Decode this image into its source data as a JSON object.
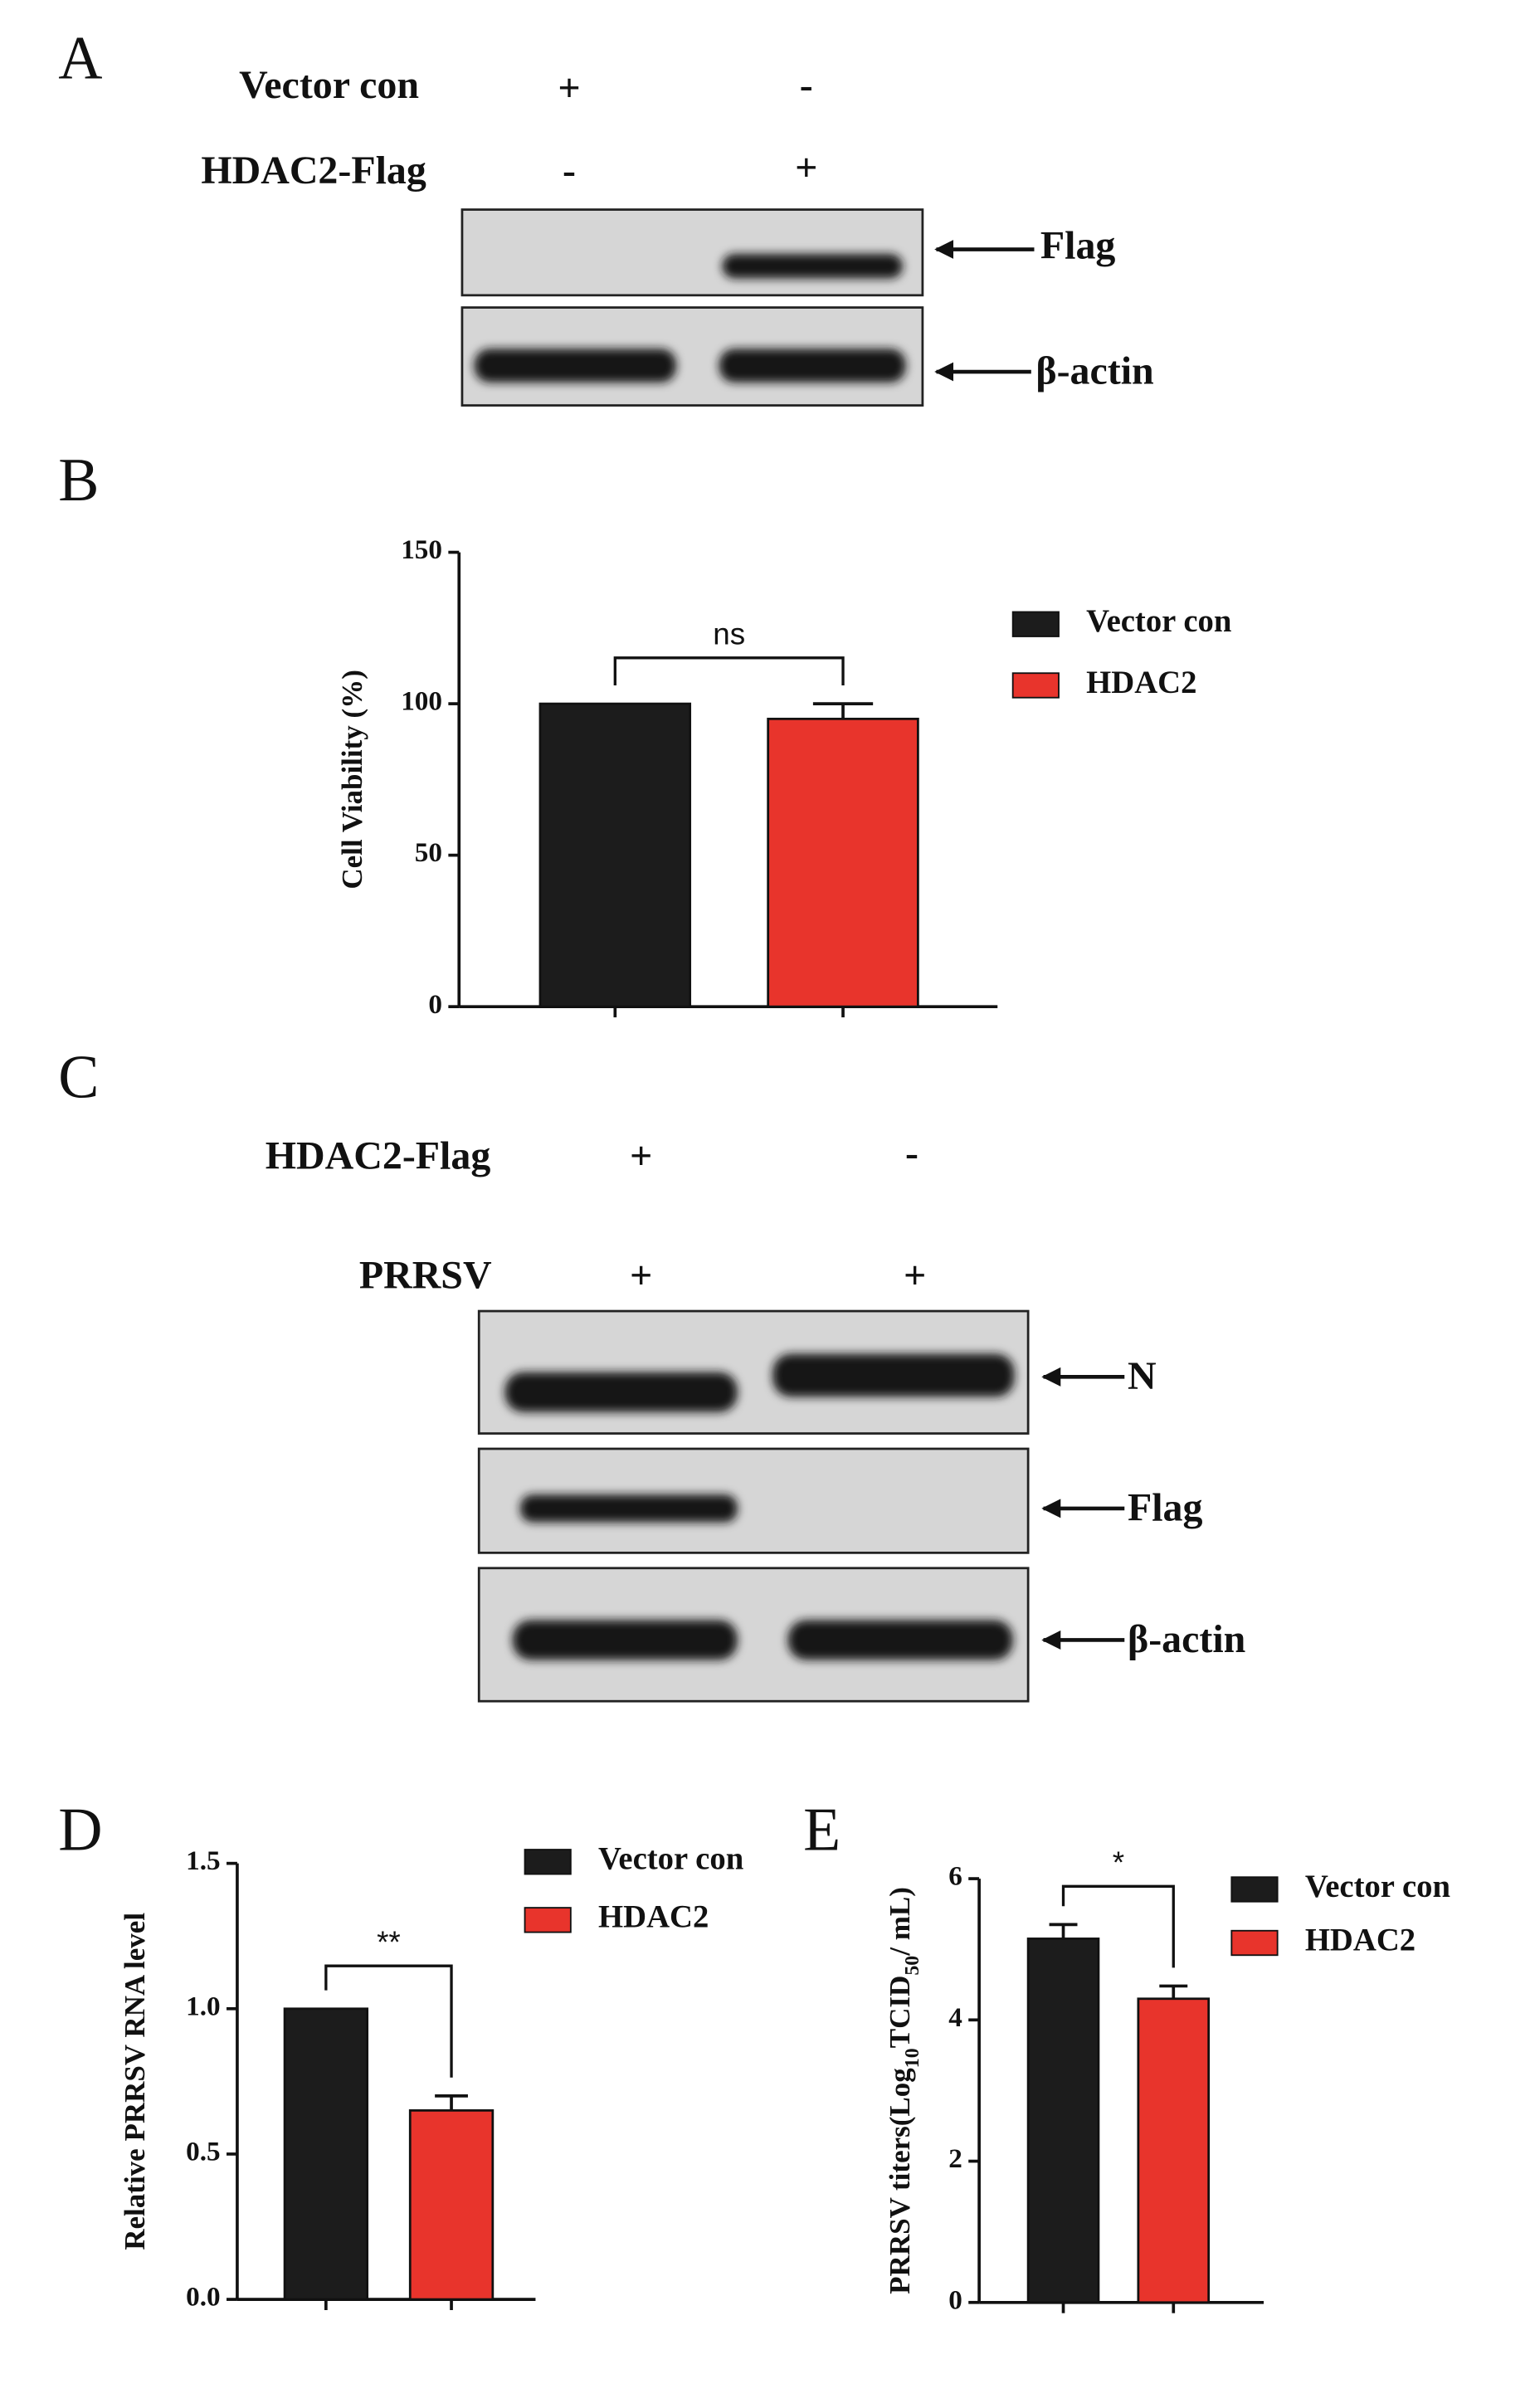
{
  "blots": [
    {
      "label": "A",
      "conditions": [
        {
          "name": "Vector con",
          "marks": [
            "+",
            "-"
          ]
        },
        {
          "name": "HDAC2-Flag",
          "marks": [
            "-",
            "+"
          ]
        }
      ],
      "bands": [
        "Flag",
        "β-actin"
      ]
    },
    {
      "label": "C",
      "conditions": [
        {
          "name": "HDAC2-Flag",
          "marks": [
            "+",
            "-"
          ]
        },
        {
          "name": "PRRSV",
          "marks": [
            "+",
            "+"
          ]
        }
      ],
      "bands": [
        "N",
        "Flag",
        "β-actin"
      ]
    }
  ],
  "chart_data": [
    {
      "type": "bar",
      "panel_label": "B",
      "ylabel": "Cell Viability (%)",
      "categories": [
        null
      ],
      "series": [
        {
          "name": "Vector con",
          "color": "#1c1c1c",
          "values": [
            100
          ],
          "errors": [
            0
          ]
        },
        {
          "name": "HDAC2",
          "color": "#e8342c",
          "values": [
            95
          ],
          "errors": [
            5
          ]
        }
      ],
      "annotation": "ns",
      "ylim": [
        0,
        150
      ],
      "yticks": [
        0,
        50,
        100,
        150
      ]
    },
    {
      "type": "bar",
      "panel_label": "D",
      "ylabel": "Relative PRRSV RNA level",
      "categories": [
        null
      ],
      "series": [
        {
          "name": "Vector con",
          "color": "#1c1c1c",
          "values": [
            1.0
          ],
          "errors": [
            0
          ]
        },
        {
          "name": "HDAC2",
          "color": "#e8342c",
          "values": [
            0.65
          ],
          "errors": [
            0.05
          ]
        }
      ],
      "annotation": "**",
      "ylim": [
        0,
        1.5
      ],
      "yticks": [
        {
          "value": 0,
          "label": "0.0"
        },
        0.5,
        {
          "value": 1,
          "label": "1.0"
        },
        1.5
      ]
    },
    {
      "type": "bar",
      "panel_label": "E",
      "ylabel": [
        "PRRSV titers(Log",
        "10",
        "TCID",
        "50",
        "/ mL)"
      ],
      "categories": [
        null
      ],
      "series": [
        {
          "name": "Vector con",
          "color": "#1c1c1c",
          "values": [
            5.15
          ],
          "errors": [
            0.2
          ]
        },
        {
          "name": "HDAC2",
          "color": "#e8342c",
          "values": [
            4.3
          ],
          "errors": [
            0.18
          ]
        }
      ],
      "annotation": "*",
      "ylim": [
        0,
        6
      ],
      "yticks": [
        0,
        2,
        4,
        6
      ]
    }
  ]
}
